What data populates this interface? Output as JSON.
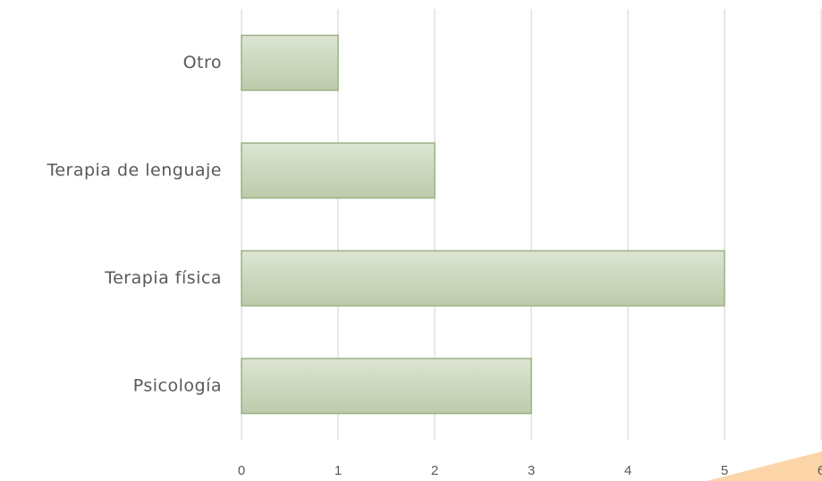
{
  "chart_data": {
    "type": "bar",
    "orientation": "horizontal",
    "categories": [
      "Otro",
      "Terapia de lenguaje",
      "Terapia física",
      "Psicología"
    ],
    "values": [
      1,
      2,
      5,
      3
    ],
    "color": "#c9d6bb",
    "xlim": [
      0,
      6
    ],
    "xticks": [
      0,
      1,
      2,
      3,
      4,
      5,
      6
    ],
    "grid": true
  }
}
